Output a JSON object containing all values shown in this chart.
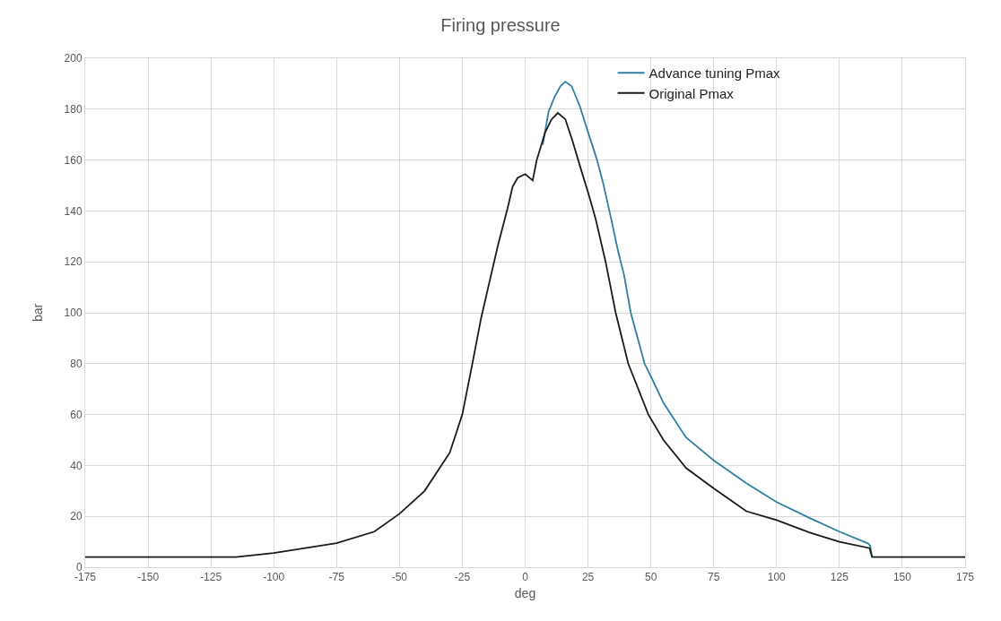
{
  "chart_data": {
    "type": "line",
    "title": "Firing pressure",
    "xlabel": "deg",
    "ylabel": "bar",
    "xlim": [
      -175,
      175
    ],
    "xticks": [
      -175,
      -150,
      -125,
      -100,
      -75,
      -50,
      -25,
      0,
      25,
      50,
      75,
      100,
      125,
      150,
      175
    ],
    "ylim": [
      0,
      200
    ],
    "yticks": [
      0,
      20,
      40,
      60,
      80,
      100,
      120,
      140,
      160,
      180,
      200
    ],
    "grid": true,
    "legend": "top right",
    "marker": "none",
    "line_style": "solid",
    "series": [
      {
        "name": "Advance tuning Pmax",
        "color": "#2f7fa0",
        "x": [
          7,
          9.3,
          11.8,
          14,
          16,
          18.5,
          21.8,
          25,
          28.6,
          31,
          34.3,
          37,
          39.3,
          42,
          47.5,
          50,
          55,
          64,
          75,
          88,
          100,
          113,
          125,
          136.5,
          137.2,
          138
        ],
        "values": [
          166,
          179,
          185,
          189,
          190.8,
          189,
          181,
          171,
          160,
          151,
          136.5,
          124,
          115,
          100,
          80,
          75,
          64.6,
          51,
          42,
          33,
          25.6,
          19.4,
          14,
          9.3,
          8.5,
          4
        ]
      },
      {
        "name": "Original Pmax",
        "color": "#1a1a1a",
        "x": [
          -175,
          -115,
          -100,
          -75,
          -60,
          -50,
          -40,
          -30,
          -25,
          -21,
          -17.5,
          -14,
          -10.7,
          -7,
          -5,
          -3,
          0,
          3,
          4.6,
          8,
          10.5,
          13,
          16,
          19,
          22,
          25.4,
          28,
          32,
          36,
          41,
          49,
          55,
          64,
          75,
          88,
          100,
          113,
          125,
          137,
          138,
          175
        ],
        "values": [
          4,
          4,
          5.6,
          9.5,
          14,
          21,
          30,
          45,
          60,
          80,
          98,
          113,
          127,
          141,
          149.5,
          153,
          154.5,
          152,
          160,
          171,
          176,
          178.5,
          176,
          167,
          157,
          146,
          137,
          120,
          100,
          80,
          60,
          50,
          39,
          31,
          22,
          18.5,
          13.7,
          10,
          7.5,
          4,
          4
        ]
      }
    ]
  }
}
